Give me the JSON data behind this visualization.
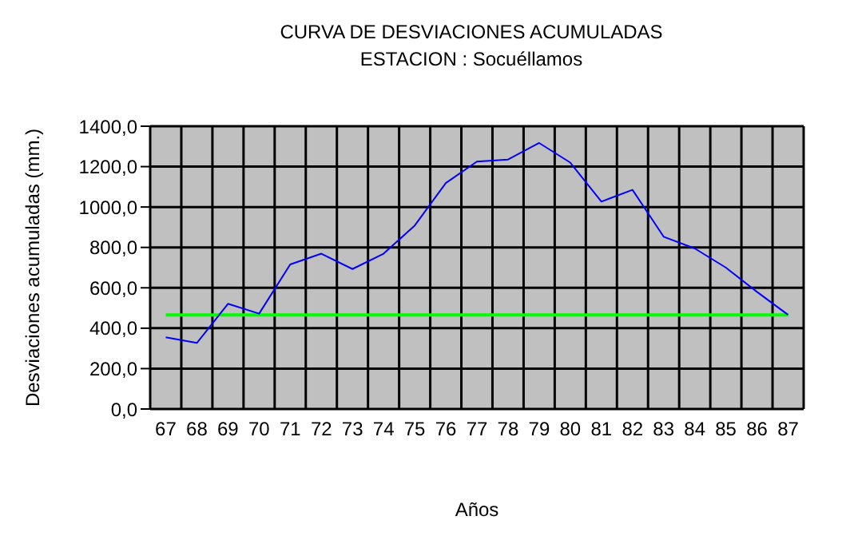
{
  "chart_data": {
    "type": "line",
    "title": "CURVA DE DESVIACIONES ACUMULADAS",
    "subtitle": "ESTACION : Socuéllamos",
    "xlabel": "Años",
    "ylabel": "Desviaciones acumuladas (mm.)",
    "categories": [
      "67",
      "68",
      "69",
      "70",
      "71",
      "72",
      "73",
      "74",
      "75",
      "76",
      "77",
      "78",
      "79",
      "80",
      "81",
      "82",
      "83",
      "84",
      "85",
      "86",
      "87"
    ],
    "series": [
      {
        "color": "#0000ff",
        "values": [
          355,
          327,
          521,
          472,
          716,
          769,
          693,
          769,
          908,
          1119,
          1225,
          1235,
          1317,
          1220,
          1027,
          1085,
          853,
          795,
          700,
          580,
          466
        ]
      }
    ],
    "ref_lines": [
      {
        "axis": "y",
        "value": 466,
        "color": "#00ff00"
      }
    ],
    "ylim": [
      0,
      1400
    ],
    "yticks": [
      {
        "value": 0,
        "label": "0,0"
      },
      {
        "value": 200,
        "label": "200,0"
      },
      {
        "value": 400,
        "label": "400,0"
      },
      {
        "value": 600,
        "label": "600,0"
      },
      {
        "value": 800,
        "label": "800,0"
      },
      {
        "value": 1000,
        "label": "1000,0"
      },
      {
        "value": 1200,
        "label": "1200,0"
      },
      {
        "value": 1400,
        "label": "1400,0"
      }
    ],
    "grid": true,
    "legend": false,
    "marker": "none",
    "line_style": "solid"
  }
}
